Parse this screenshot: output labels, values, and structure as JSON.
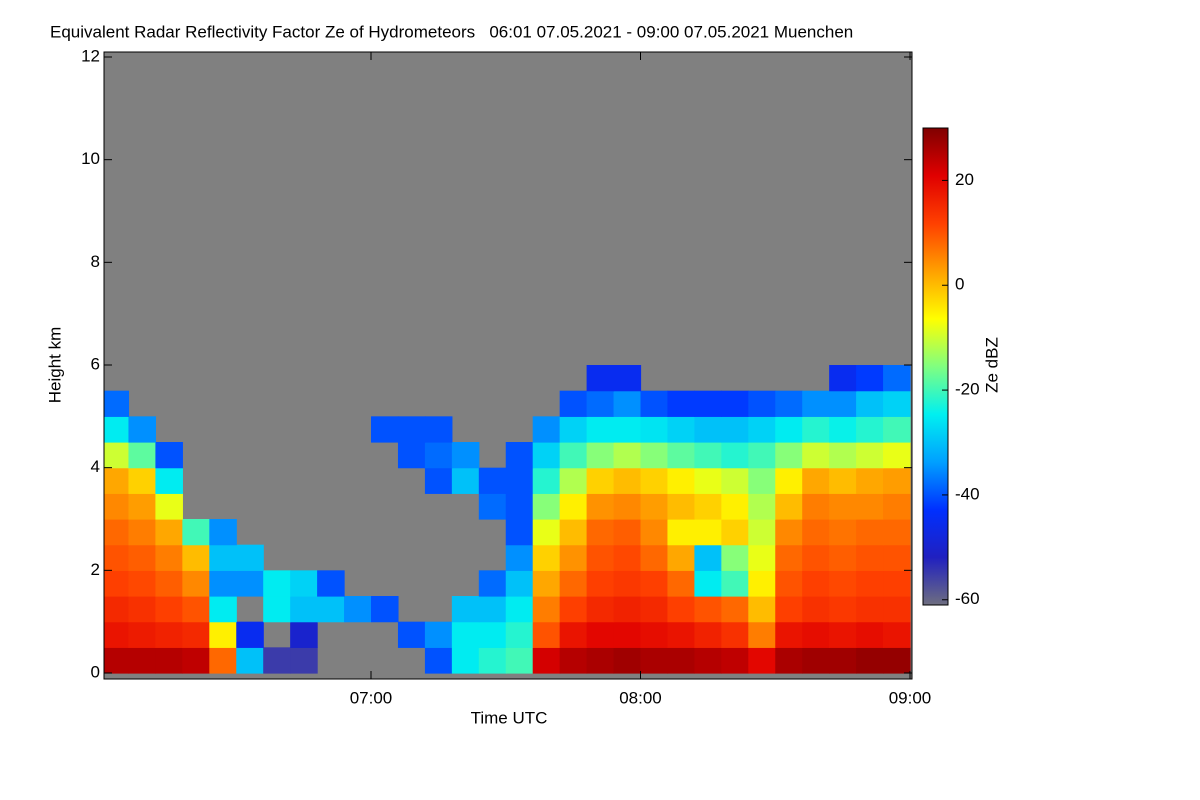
{
  "chart_data": {
    "type": "heatmap",
    "title": "Equivalent Radar Reflectivity Factor Ze of Hydrometeors   06:01 07.05.2021 - 09:00 07.05.2021 Muenchen",
    "x_label": "Time UTC",
    "y_label": "Height km",
    "colorbar_label": "Ze dBZ",
    "xlim": [
      "06:01",
      "09:00"
    ],
    "xticks": [
      "07:00",
      "08:00",
      "09:00"
    ],
    "ylim": [
      0,
      12
    ],
    "yticks": [
      0,
      2,
      4,
      6,
      8,
      10,
      12
    ],
    "zlim": [
      -61,
      30
    ],
    "zticks": [
      -60,
      -40,
      -20,
      0,
      20
    ],
    "background_color": "#808080",
    "colormap": [
      "#6e6e80",
      "#2020c0",
      "#0030ff",
      "#00a0ff",
      "#00f0f0",
      "#80ff80",
      "#ffff00",
      "#ffa000",
      "#ff4000",
      "#e00000",
      "#800000"
    ],
    "x_bins": [
      "06:00",
      "06:06",
      "06:12",
      "06:18",
      "06:24",
      "06:30",
      "06:36",
      "06:42",
      "06:48",
      "06:54",
      "07:00",
      "07:06",
      "07:12",
      "07:18",
      "07:24",
      "07:30",
      "07:36",
      "07:42",
      "07:48",
      "07:54",
      "08:00",
      "08:06",
      "08:12",
      "08:18",
      "08:24",
      "08:30",
      "08:36",
      "08:42",
      "08:48",
      "08:54",
      "09:00"
    ],
    "y_bins": [
      0,
      0.5,
      1,
      1.5,
      2,
      2.5,
      3,
      3.5,
      4,
      4.5,
      5,
      5.5,
      6
    ],
    "z": [
      [
        25,
        25,
        25,
        24,
        8,
        -30,
        -55,
        -55,
        null,
        null,
        null,
        null,
        -40,
        -25,
        -22,
        -20,
        22,
        25,
        26,
        27,
        26,
        26,
        25,
        24,
        20,
        26,
        27,
        27,
        28,
        28
      ],
      [
        18,
        17,
        16,
        15,
        -5,
        -45,
        null,
        -50,
        null,
        null,
        null,
        -40,
        -35,
        -25,
        -25,
        -22,
        10,
        18,
        20,
        20,
        19,
        18,
        16,
        14,
        6,
        18,
        19,
        18,
        19,
        18
      ],
      [
        15,
        14,
        12,
        10,
        -25,
        null,
        -25,
        -30,
        -30,
        -35,
        -40,
        null,
        null,
        -30,
        -30,
        -25,
        6,
        12,
        15,
        16,
        15,
        12,
        10,
        8,
        0,
        12,
        14,
        13,
        14,
        14
      ],
      [
        12,
        11,
        9,
        5,
        -35,
        -35,
        -25,
        -28,
        -40,
        null,
        null,
        null,
        null,
        null,
        -38,
        -30,
        2,
        8,
        12,
        13,
        12,
        8,
        -25,
        -20,
        -5,
        10,
        12,
        11,
        12,
        12
      ],
      [
        10,
        9,
        6,
        0,
        -30,
        -30,
        null,
        null,
        null,
        null,
        null,
        null,
        null,
        null,
        null,
        -35,
        -2,
        4,
        10,
        11,
        8,
        2,
        -30,
        -15,
        -8,
        8,
        10,
        9,
        10,
        10
      ],
      [
        8,
        6,
        2,
        -20,
        -35,
        null,
        null,
        null,
        null,
        null,
        null,
        null,
        null,
        null,
        null,
        -40,
        -8,
        0,
        8,
        9,
        5,
        -5,
        -5,
        -2,
        -10,
        5,
        8,
        7,
        8,
        8
      ],
      [
        5,
        3,
        -8,
        null,
        null,
        null,
        null,
        null,
        null,
        null,
        null,
        null,
        null,
        null,
        -38,
        -40,
        -15,
        -5,
        4,
        5,
        3,
        0,
        -2,
        -5,
        -12,
        0,
        6,
        5,
        5,
        6
      ],
      [
        2,
        -2,
        -25,
        null,
        null,
        null,
        null,
        null,
        null,
        null,
        null,
        null,
        -40,
        -30,
        -40,
        -40,
        -22,
        -12,
        -2,
        0,
        -2,
        -5,
        -8,
        -10,
        -15,
        -5,
        2,
        0,
        2,
        3
      ],
      [
        -10,
        -18,
        -40,
        null,
        null,
        null,
        null,
        null,
        null,
        null,
        null,
        -40,
        -38,
        -35,
        null,
        -40,
        -28,
        -20,
        -15,
        -12,
        -15,
        -18,
        -20,
        -22,
        -20,
        -15,
        -10,
        -12,
        -10,
        -8
      ],
      [
        -25,
        -35,
        null,
        null,
        null,
        null,
        null,
        null,
        null,
        null,
        -40,
        -40,
        -40,
        null,
        null,
        null,
        -35,
        -28,
        -25,
        -25,
        -26,
        -28,
        -30,
        -30,
        -28,
        -25,
        -22,
        -24,
        -22,
        -20
      ],
      [
        -38,
        null,
        null,
        null,
        null,
        null,
        null,
        null,
        null,
        null,
        null,
        null,
        null,
        null,
        null,
        null,
        null,
        -40,
        -38,
        -35,
        -40,
        -42,
        -42,
        -42,
        -40,
        -38,
        -35,
        -35,
        -30,
        -28
      ],
      [
        null,
        null,
        null,
        null,
        null,
        null,
        null,
        null,
        null,
        null,
        null,
        null,
        null,
        null,
        null,
        null,
        null,
        null,
        -45,
        -45,
        null,
        null,
        null,
        null,
        null,
        null,
        null,
        -45,
        -42,
        -38
      ]
    ]
  }
}
